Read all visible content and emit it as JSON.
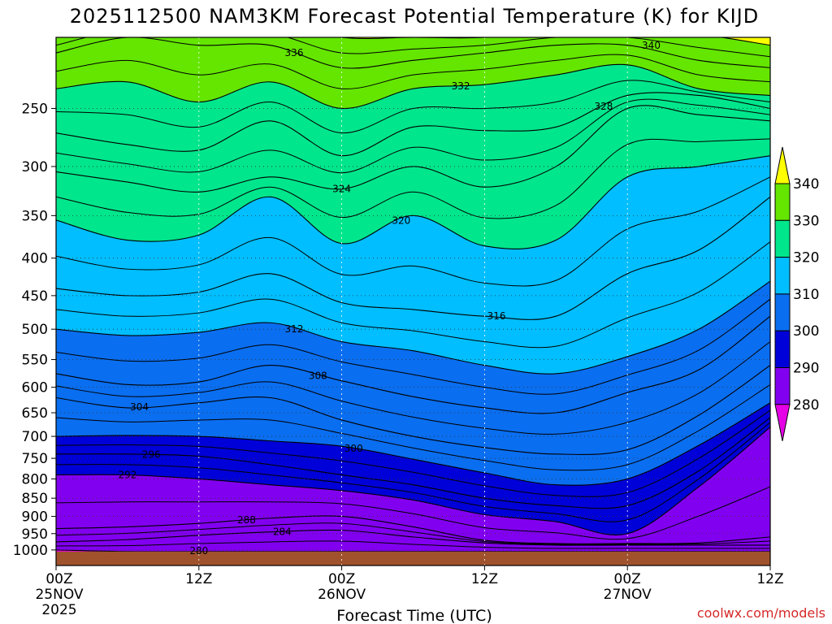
{
  "chart_data": {
    "type": "contour-timeheight",
    "title": "2025112500 NAM3KM Forecast Potential Temperature (K) for KIJD",
    "xlabel": "Forecast Time (UTC)",
    "credit": "coolwx.com/models",
    "x_ticks": [
      {
        "hour": 0,
        "line1": "00Z",
        "line2": "25NOV",
        "line3": "2025"
      },
      {
        "hour": 12,
        "line1": "12Z",
        "line2": "",
        "line3": ""
      },
      {
        "hour": 24,
        "line1": "00Z",
        "line2": "26NOV",
        "line3": ""
      },
      {
        "hour": 36,
        "line1": "12Z",
        "line2": "",
        "line3": ""
      },
      {
        "hour": 48,
        "line1": "00Z",
        "line2": "27NOV",
        "line3": ""
      },
      {
        "hour": 60,
        "line1": "12Z",
        "line2": "",
        "line3": ""
      }
    ],
    "xlim": [
      0,
      60
    ],
    "ylim_hpa": [
      1050,
      200
    ],
    "y_ticks": [
      "250",
      "300",
      "350",
      "400",
      "450",
      "500",
      "550",
      "600",
      "650",
      "700",
      "750",
      "800",
      "850",
      "900",
      "950",
      "1000"
    ],
    "colorbar": {
      "labels": [
        "340",
        "330",
        "320",
        "310",
        "300",
        "290",
        "280"
      ],
      "bands": [
        {
          "range": "<280",
          "color": "#e600e6"
        },
        {
          "range": "280-290",
          "color": "#8200f0"
        },
        {
          "range": "290-300",
          "color": "#0000d8"
        },
        {
          "range": "300-310",
          "color": "#0a6ef0"
        },
        {
          "range": "310-320",
          "color": "#00beff"
        },
        {
          "range": "320-330",
          "color": "#00e68c"
        },
        {
          "range": "330-340",
          "color": "#64e600"
        },
        {
          "range": ">340",
          "color": "#ffff00"
        }
      ]
    },
    "contour_interval_K": 2,
    "times": [
      0,
      6,
      12,
      18,
      24,
      30,
      36,
      42,
      48,
      54,
      60
    ],
    "isentropes": [
      {
        "theta": 280,
        "p": [
          1000,
          1005,
          1005,
          1005,
          1005,
          1005,
          1005,
          1005,
          1005,
          1005,
          1005
        ],
        "label": "280",
        "label_hour": 12
      },
      {
        "theta": 284,
        "p": [
          975,
          968,
          955,
          945,
          940,
          960,
          978,
          985,
          985,
          985,
          985
        ],
        "label": "284",
        "label_hour": 19
      },
      {
        "theta": 288,
        "p": [
          935,
          930,
          920,
          905,
          900,
          930,
          970,
          980,
          980,
          978,
          960
        ],
        "label": "288",
        "label_hour": 16
      },
      {
        "theta": 292,
        "p": [
          790,
          790,
          800,
          815,
          830,
          855,
          895,
          915,
          950,
          820,
          680
        ],
        "label": "292",
        "label_hour": 6
      },
      {
        "theta": 296,
        "p": [
          740,
          740,
          745,
          765,
          790,
          815,
          850,
          870,
          870,
          780,
          660
        ],
        "label": "296",
        "label_hour": 8
      },
      {
        "theta": 300,
        "p": [
          700,
          698,
          700,
          710,
          722,
          752,
          785,
          815,
          800,
          720,
          630
        ],
        "label": "300",
        "label_hour": 25
      },
      {
        "theta": 304,
        "p": [
          620,
          640,
          630,
          620,
          665,
          700,
          725,
          740,
          730,
          655,
          560
        ],
        "label": "304",
        "label_hour": 7
      },
      {
        "theta": 308,
        "p": [
          575,
          595,
          590,
          560,
          588,
          618,
          640,
          650,
          610,
          568,
          480
        ],
        "label": "308",
        "label_hour": 22
      },
      {
        "theta": 312,
        "p": [
          500,
          510,
          505,
          490,
          520,
          535,
          560,
          575,
          545,
          500,
          430
        ],
        "label": "312",
        "label_hour": 20
      },
      {
        "theta": 316,
        "p": [
          440,
          450,
          445,
          420,
          460,
          470,
          480,
          480,
          420,
          390,
          330
        ],
        "label": "316",
        "label_hour": 37
      },
      {
        "theta": 320,
        "p": [
          355,
          378,
          372,
          330,
          382,
          350,
          385,
          378,
          310,
          300,
          290
        ],
        "label": "320",
        "label_hour": 29
      },
      {
        "theta": 324,
        "p": [
          305,
          315,
          325,
          310,
          322,
          300,
          320,
          300,
          250,
          255,
          260
        ],
        "label": "324",
        "label_hour": 24
      },
      {
        "theta": 328,
        "p": [
          270,
          280,
          285,
          260,
          290,
          265,
          268,
          265,
          240,
          240,
          250
        ],
        "label": "328",
        "label_hour": 46
      },
      {
        "theta": 332,
        "p": [
          235,
          230,
          245,
          230,
          250,
          235,
          232,
          225,
          218,
          235,
          240
        ],
        "label": "332",
        "label_hour": 34
      },
      {
        "theta": 336,
        "p": [
          210,
          200,
          205,
          205,
          220,
          215,
          210,
          205,
          205,
          215,
          220
        ],
        "label": "336",
        "label_hour": 20
      },
      {
        "theta": 340,
        "p": [
          200,
          190,
          190,
          190,
          200,
          200,
          200,
          195,
          195,
          198,
          205
        ],
        "label": "340",
        "label_hour": 50
      }
    ]
  }
}
